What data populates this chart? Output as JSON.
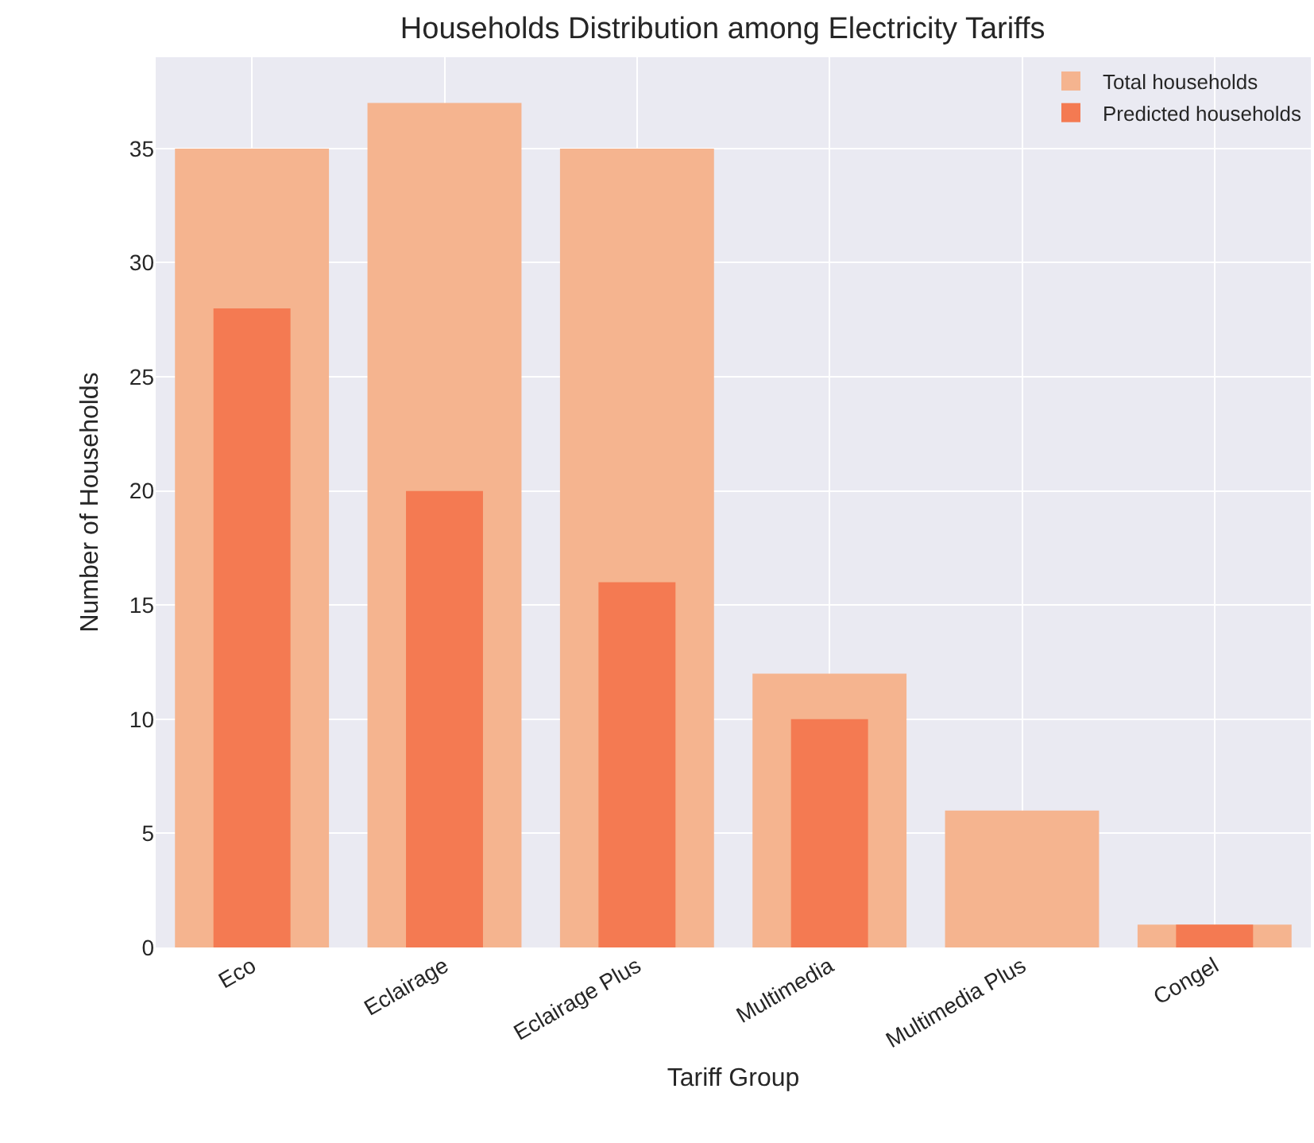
{
  "chart_data": {
    "type": "bar",
    "title": "Households Distribution among Electricity Tariffs",
    "xlabel": "Tariff Group",
    "ylabel": "Number of Households",
    "categories": [
      "Eco",
      "Eclairage",
      "Eclairage Plus",
      "Multimedia",
      "Multimedia Plus",
      "Congel"
    ],
    "series": [
      {
        "name": "Total households",
        "color": "#f5b48f",
        "values": [
          35,
          37,
          35,
          12,
          6,
          1
        ]
      },
      {
        "name": "Predicted households",
        "color": "#f47a52",
        "values": [
          28,
          20,
          16,
          10,
          0,
          1
        ]
      }
    ],
    "ylim": [
      0,
      39
    ],
    "yticks": [
      0,
      5,
      10,
      15,
      20,
      25,
      30,
      35
    ],
    "grid": true,
    "legend": "top right"
  }
}
